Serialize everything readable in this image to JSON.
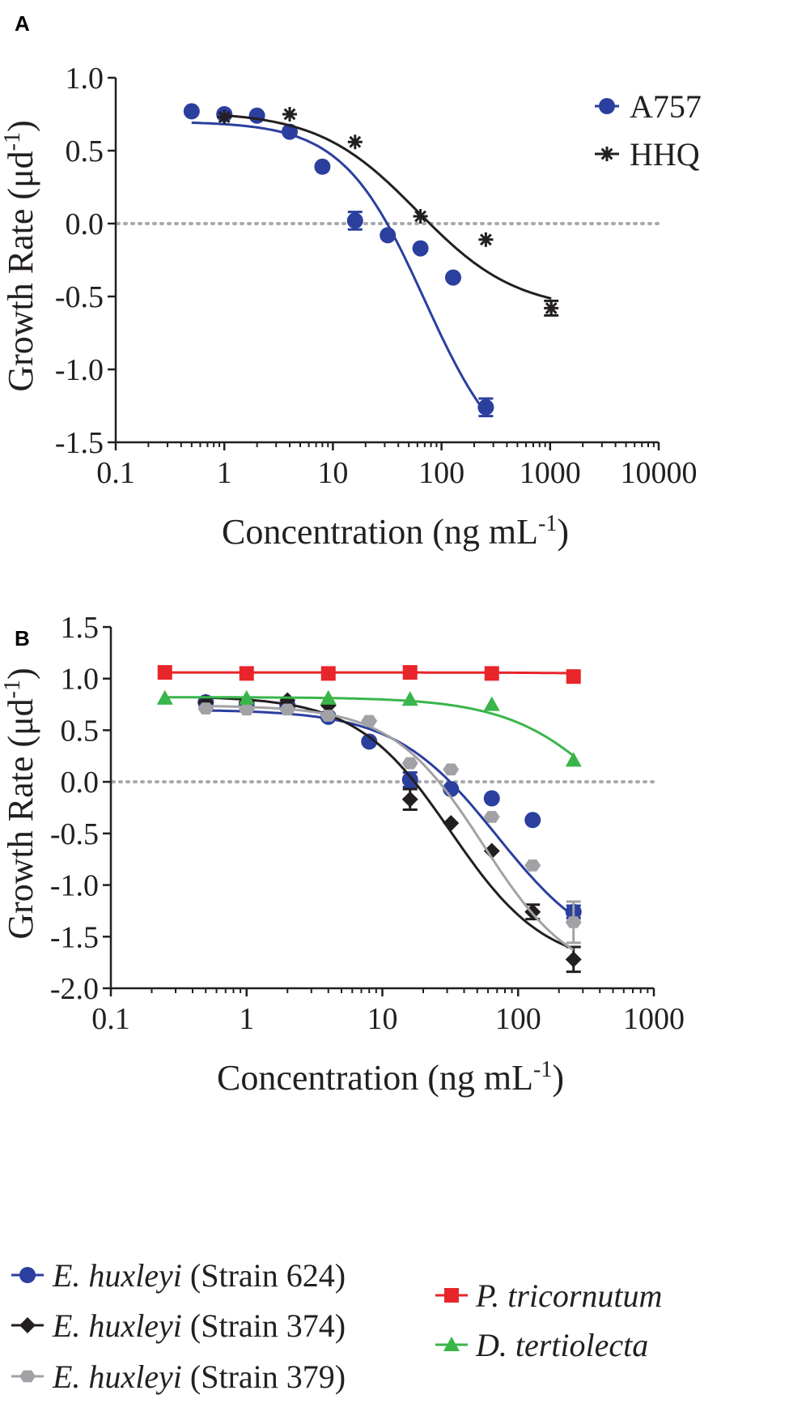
{
  "chart_data": [
    {
      "panel": "A",
      "type": "scatter",
      "xscale": "log",
      "xlabel": {
        "main": "Concentration (ng mL",
        "sup": "-1",
        "tail": ")"
      },
      "ylabel": {
        "main": "Growth Rate (μd",
        "sup": "-1",
        "tail": ")"
      },
      "xlim": [
        0.1,
        10000
      ],
      "ylim": [
        -1.5,
        1.0
      ],
      "xticks": [
        0.1,
        1,
        10,
        100,
        1000,
        10000
      ],
      "xtick_labels": [
        "0.1",
        "1",
        "10",
        "100",
        "1000",
        "10000"
      ],
      "yticks": [
        1.0,
        0.5,
        0.0,
        -0.5,
        -1.0,
        -1.5
      ],
      "ytick_labels": [
        "1.0",
        "0.5",
        "0.0",
        "-0.5",
        "-1.0",
        "-1.5"
      ],
      "zero_line": true,
      "legend_position": "top-right",
      "series": [
        {
          "name": "A757",
          "marker": "circle",
          "color": "#2b3f9e",
          "points": [
            {
              "x": 0.5,
              "y": 0.77
            },
            {
              "x": 1,
              "y": 0.75
            },
            {
              "x": 2,
              "y": 0.74
            },
            {
              "x": 4,
              "y": 0.63
            },
            {
              "x": 8,
              "y": 0.39
            },
            {
              "x": 16,
              "y": 0.02,
              "err": 0.06
            },
            {
              "x": 32,
              "y": -0.08
            },
            {
              "x": 64,
              "y": -0.17
            },
            {
              "x": 128,
              "y": -0.37
            },
            {
              "x": 256,
              "y": -1.26,
              "err": 0.06
            }
          ],
          "fit": {
            "top": 0.7,
            "bottom": -1.75,
            "ec50": 70,
            "hill": 1.15,
            "xmin": 0.5,
            "xmax": 256
          }
        },
        {
          "name": "HHQ",
          "marker": "star",
          "color": "#231f20",
          "points": [
            {
              "x": 1,
              "y": 0.73
            },
            {
              "x": 4,
              "y": 0.75
            },
            {
              "x": 16,
              "y": 0.56
            },
            {
              "x": 64,
              "y": 0.05
            },
            {
              "x": 256,
              "y": -0.11
            },
            {
              "x": 1024,
              "y": -0.58,
              "err": 0.05
            }
          ],
          "fit": {
            "top": 0.77,
            "bottom": -0.6,
            "ec50": 60,
            "hill": 0.95,
            "xmin": 1,
            "xmax": 1024
          }
        }
      ]
    },
    {
      "panel": "B",
      "type": "scatter",
      "xscale": "log",
      "xlabel": {
        "main": "Concentration (ng mL",
        "sup": "-1",
        "tail": ")"
      },
      "ylabel": {
        "main": "Growth Rate (μd",
        "sup": "-1",
        "tail": ")"
      },
      "xlim": [
        0.1,
        1000
      ],
      "ylim": [
        -2.0,
        1.5
      ],
      "xticks": [
        0.1,
        1,
        10,
        100,
        1000
      ],
      "xtick_labels": [
        "0.1",
        "1",
        "10",
        "100",
        "1000"
      ],
      "yticks": [
        1.5,
        1.0,
        0.5,
        0.0,
        -0.5,
        -1.0,
        -1.5,
        -2.0
      ],
      "ytick_labels": [
        "1.5",
        "1.0",
        "0.5",
        "0.0",
        "-0.5",
        "-1.0",
        "-1.5",
        "-2.0"
      ],
      "zero_line": true,
      "legend_position": "bottom",
      "series": [
        {
          "name_italic": "E. huxleyi",
          "name_rest": " (Strain 624)",
          "marker": "circle",
          "color": "#2b3f9e",
          "points": [
            {
              "x": 0.5,
              "y": 0.77
            },
            {
              "x": 1,
              "y": 0.75
            },
            {
              "x": 2,
              "y": 0.74
            },
            {
              "x": 4,
              "y": 0.63
            },
            {
              "x": 8,
              "y": 0.39
            },
            {
              "x": 16,
              "y": 0.02,
              "err": 0.07
            },
            {
              "x": 32,
              "y": -0.07
            },
            {
              "x": 64,
              "y": -0.16
            },
            {
              "x": 128,
              "y": -0.37
            },
            {
              "x": 256,
              "y": -1.26,
              "err": 0.06
            }
          ],
          "fit": {
            "top": 0.7,
            "bottom": -1.75,
            "ec50": 70,
            "hill": 1.15,
            "xmin": 0.5,
            "xmax": 256
          }
        },
        {
          "name_italic": "E. huxleyi",
          "name_rest": " (Strain 374)",
          "marker": "diamond",
          "color": "#231f20",
          "points": [
            {
              "x": 0.5,
              "y": 0.77
            },
            {
              "x": 1,
              "y": 0.77
            },
            {
              "x": 2,
              "y": 0.79
            },
            {
              "x": 4,
              "y": 0.74
            },
            {
              "x": 16,
              "y": -0.17,
              "err": 0.1
            },
            {
              "x": 32,
              "y": -0.4
            },
            {
              "x": 64,
              "y": -0.67
            },
            {
              "x": 128,
              "y": -1.26,
              "err": 0.07
            },
            {
              "x": 256,
              "y": -1.72,
              "err": 0.12
            }
          ],
          "fit": {
            "top": 0.83,
            "bottom": -1.8,
            "ec50": 32,
            "hill": 1.25,
            "xmin": 0.5,
            "xmax": 256
          }
        },
        {
          "name_italic": "E. huxleyi",
          "name_rest": " (Strain 379)",
          "marker": "hexagon",
          "color": "#a2a2a6",
          "points": [
            {
              "x": 0.5,
              "y": 0.71
            },
            {
              "x": 1,
              "y": 0.7
            },
            {
              "x": 2,
              "y": 0.7
            },
            {
              "x": 4,
              "y": 0.64
            },
            {
              "x": 8,
              "y": 0.59
            },
            {
              "x": 16,
              "y": 0.18
            },
            {
              "x": 32,
              "y": 0.12
            },
            {
              "x": 64,
              "y": -0.34
            },
            {
              "x": 128,
              "y": -0.81
            },
            {
              "x": 256,
              "y": -1.36,
              "err": 0.2
            }
          ],
          "fit": {
            "top": 0.74,
            "bottom": -1.95,
            "ec50": 55,
            "hill": 1.3,
            "xmin": 0.5,
            "xmax": 256
          }
        },
        {
          "name_italic": "P. tricornutum",
          "name_rest": "",
          "marker": "square",
          "color": "#e8252a",
          "points": [
            {
              "x": 0.25,
              "y": 1.06
            },
            {
              "x": 1,
              "y": 1.05
            },
            {
              "x": 4,
              "y": 1.05
            },
            {
              "x": 16,
              "y": 1.06
            },
            {
              "x": 64,
              "y": 1.05
            },
            {
              "x": 256,
              "y": 1.02
            }
          ],
          "fit": {
            "top": 1.06,
            "bottom": -1.5,
            "ec50": 80000,
            "hill": 1.0,
            "xmin": 0.25,
            "xmax": 256
          }
        },
        {
          "name_italic": "D. tertiolecta",
          "name_rest": "",
          "marker": "triangle",
          "color": "#3ab54a",
          "points": [
            {
              "x": 0.25,
              "y": 0.81
            },
            {
              "x": 1,
              "y": 0.81
            },
            {
              "x": 4,
              "y": 0.81
            },
            {
              "x": 16,
              "y": 0.8
            },
            {
              "x": 64,
              "y": 0.75
            },
            {
              "x": 256,
              "y": 0.21
            }
          ],
          "fit": {
            "top": 0.82,
            "bottom": -1.2,
            "ec50": 600,
            "hill": 1.1,
            "xmin": 0.25,
            "xmax": 256
          }
        }
      ]
    }
  ]
}
